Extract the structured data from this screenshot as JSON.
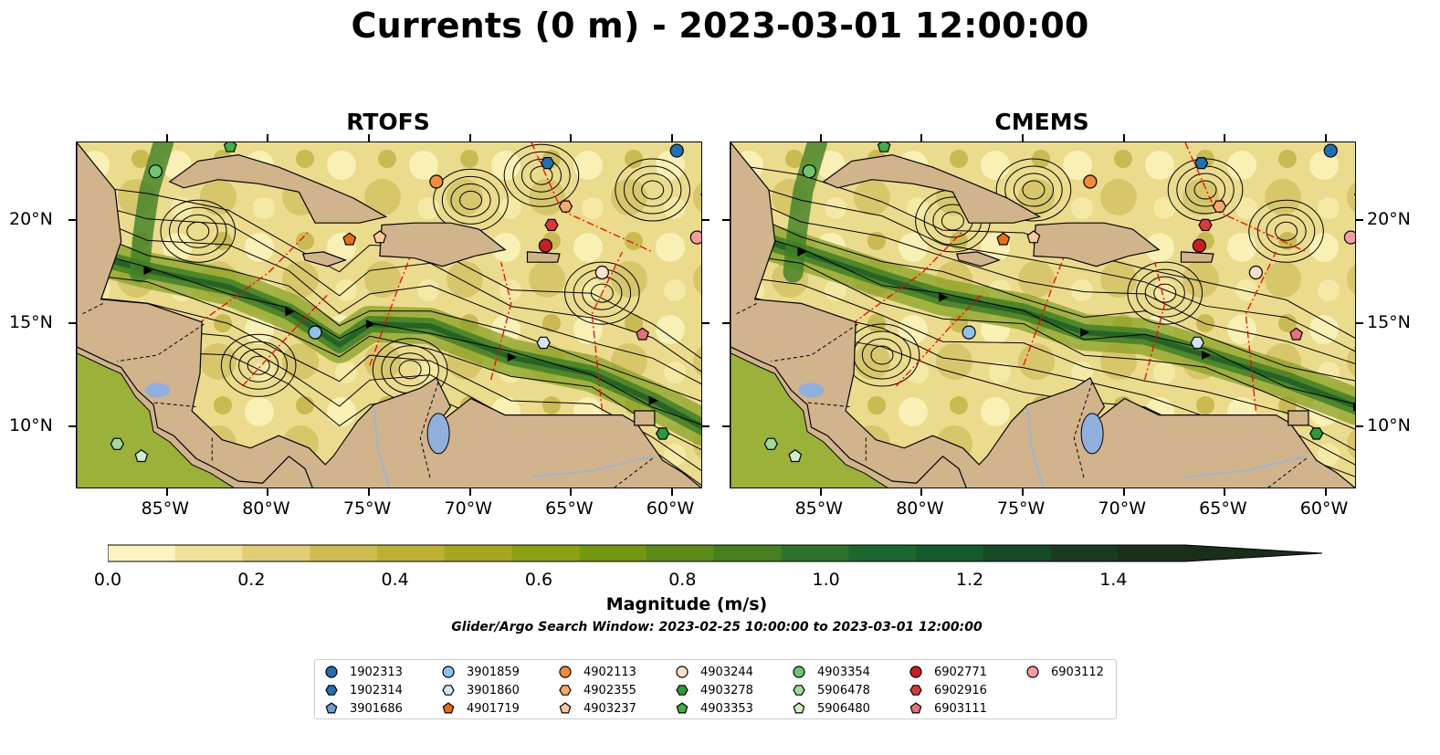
{
  "title": "Currents (0 m) - 2023-03-01 12:00:00",
  "panels": [
    {
      "title": "RTOFS"
    },
    {
      "title": "CMEMS"
    }
  ],
  "axes": {
    "x_ticks": [
      "85°W",
      "80°W",
      "75°W",
      "70°W",
      "65°W",
      "60°W"
    ],
    "y_ticks": [
      "20°N",
      "15°N",
      "10°N"
    ],
    "lon_range": [
      -89.5,
      -58.5
    ],
    "lat_range": [
      7.0,
      23.8
    ]
  },
  "colorbar": {
    "label": "Magnitude (m/s)",
    "ticks": [
      "0.0",
      "0.2",
      "0.4",
      "0.6",
      "0.8",
      "1.0",
      "1.2",
      "1.4"
    ],
    "range": [
      0.0,
      1.5
    ],
    "extend": "max",
    "colors": [
      "#fbf4c0",
      "#efe09a",
      "#e0cd74",
      "#d0bc4e",
      "#bdb032",
      "#a5a61e",
      "#8da012",
      "#74970e",
      "#5b8b16",
      "#44801f",
      "#2e7428",
      "#1b672d",
      "#135a2c",
      "#154a27",
      "#183b22",
      "#1a2e1c"
    ]
  },
  "search_window": "Glider/Argo Search Window: 2023-02-25 10:00:00 to 2023-03-01 12:00:00",
  "colors": {
    "land": "#d2b48c",
    "lakes": "#8fb0dc",
    "rivers": "#9db5d1",
    "eez": "#ff0000",
    "streamline": "#000000"
  },
  "legend": [
    {
      "label": "1902313",
      "marker": "circle",
      "color": "#1f6fb2"
    },
    {
      "label": "1902314",
      "marker": "hexagon",
      "color": "#1f6fb2"
    },
    {
      "label": "3901686",
      "marker": "pentagon",
      "color": "#6a9ed2"
    },
    {
      "label": "3901859",
      "marker": "circle",
      "color": "#8fc2ea"
    },
    {
      "label": "3901860",
      "marker": "hexagon",
      "color": "#cfe6f7"
    },
    {
      "label": "4901719",
      "marker": "pentagon",
      "color": "#e8700f"
    },
    {
      "label": "4902113",
      "marker": "circle",
      "color": "#f28b33"
    },
    {
      "label": "4902355",
      "marker": "hexagon",
      "color": "#f7a96a"
    },
    {
      "label": "4903237",
      "marker": "pentagon",
      "color": "#fbc89a"
    },
    {
      "label": "4903244",
      "marker": "circle",
      "color": "#fde0c8"
    },
    {
      "label": "4903278",
      "marker": "hexagon",
      "color": "#2d9a3a"
    },
    {
      "label": "4903353",
      "marker": "pentagon",
      "color": "#3fae48"
    },
    {
      "label": "4903354",
      "marker": "circle",
      "color": "#6ec66d"
    },
    {
      "label": "5906478",
      "marker": "hexagon",
      "color": "#9fdc98"
    },
    {
      "label": "5906480",
      "marker": "pentagon",
      "color": "#cdf0c6"
    },
    {
      "label": "6902771",
      "marker": "circle",
      "color": "#c81e1e"
    },
    {
      "label": "6902916",
      "marker": "hexagon",
      "color": "#d83a3a"
    },
    {
      "label": "6903111",
      "marker": "pentagon",
      "color": "#e87078"
    },
    {
      "label": "6903112",
      "marker": "circle",
      "color": "#f49ca0"
    }
  ],
  "floats": [
    {
      "id": "1902313",
      "lon": -59.8,
      "lat": 23.4
    },
    {
      "id": "1902314",
      "lon": -66.2,
      "lat": 22.8
    },
    {
      "id": "3901686",
      "lon": -58.3,
      "lat": 21.2
    },
    {
      "id": "3901859",
      "lon": -77.7,
      "lat": 14.6
    },
    {
      "id": "3901860",
      "lon": -66.4,
      "lat": 14.1
    },
    {
      "id": "4901719",
      "lon": -76.0,
      "lat": 19.1
    },
    {
      "id": "4902113",
      "lon": -71.7,
      "lat": 21.9
    },
    {
      "id": "4902355",
      "lon": -65.3,
      "lat": 20.7
    },
    {
      "id": "4903237",
      "lon": -74.5,
      "lat": 19.2
    },
    {
      "id": "4903244",
      "lon": -63.5,
      "lat": 17.5
    },
    {
      "id": "4903278",
      "lon": -60.5,
      "lat": 9.7
    },
    {
      "id": "4903353",
      "lon": -81.9,
      "lat": 23.6
    },
    {
      "id": "4903354",
      "lon": -85.6,
      "lat": 22.4
    },
    {
      "id": "5906478",
      "lon": -87.5,
      "lat": 9.2
    },
    {
      "id": "5906480",
      "lon": -86.3,
      "lat": 8.6
    },
    {
      "id": "6902771",
      "lon": -66.3,
      "lat": 18.8
    },
    {
      "id": "6902916",
      "lon": -66.0,
      "lat": 19.8
    },
    {
      "id": "6903111",
      "lon": -61.5,
      "lat": 14.5
    },
    {
      "id": "6903112",
      "lon": -58.8,
      "lat": 19.2
    }
  ]
}
